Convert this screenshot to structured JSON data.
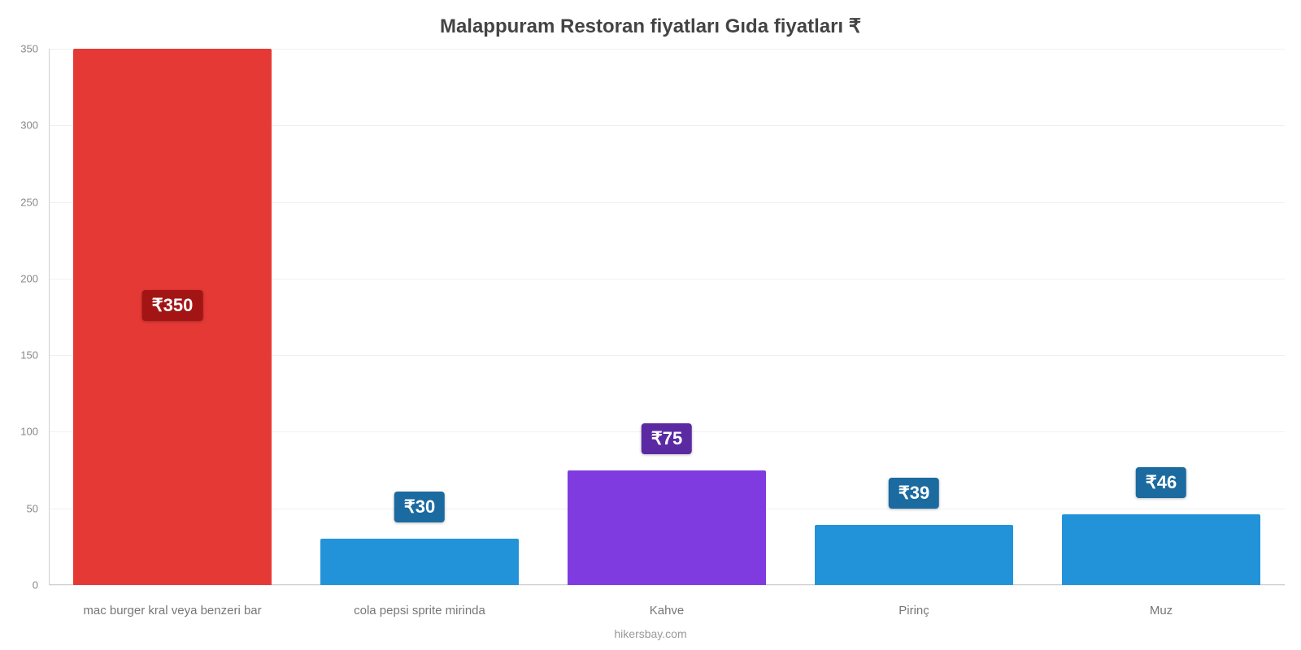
{
  "chart": {
    "type": "bar",
    "title": "Malappuram Restoran fiyatları Gıda fiyatları ₹",
    "title_fontsize": 24,
    "title_color": "#444444",
    "background_color": "#ffffff",
    "grid_color": "#f0f0f0",
    "axis_line_color": "#d0d0d0",
    "y": {
      "min": 0,
      "max": 350,
      "ticks": [
        0,
        50,
        100,
        150,
        200,
        250,
        300,
        350
      ],
      "tick_fontsize": 13,
      "tick_color": "#888888"
    },
    "x": {
      "label_fontsize": 15,
      "label_color": "#777777"
    },
    "bar_width_pct": 80,
    "categories": [
      "mac burger kral veya benzeri bar",
      "cola pepsi sprite mirinda",
      "Kahve",
      "Pirinç",
      "Muz"
    ],
    "values": [
      350,
      30,
      75,
      39,
      46
    ],
    "value_labels": [
      "₹350",
      "₹30",
      "₹75",
      "₹39",
      "₹46"
    ],
    "bar_colors": [
      "#e53935",
      "#2393d9",
      "#7f3be0",
      "#2393d9",
      "#2393d9"
    ],
    "badge_colors": [
      "#a31515",
      "#1b6aa0",
      "#5b2aa3",
      "#1b6aa0",
      "#1b6aa0"
    ],
    "badge_fontsize": 22,
    "badge_text_color": "#ffffff",
    "credit": "hikersbay.com",
    "credit_color": "#999999",
    "credit_fontsize": 14
  }
}
